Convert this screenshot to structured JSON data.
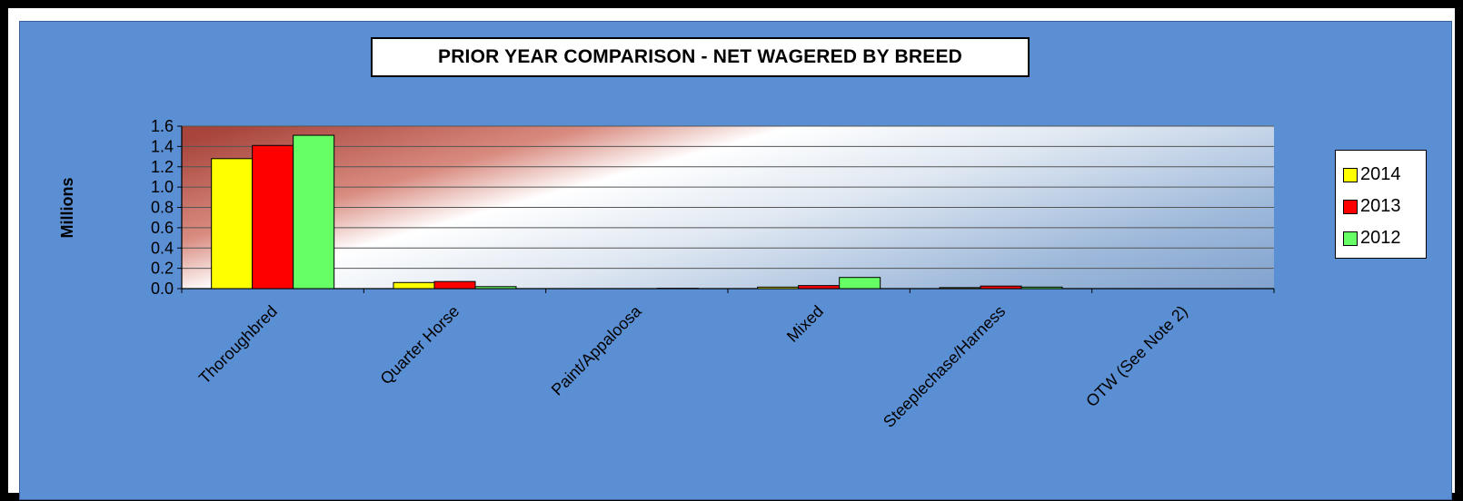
{
  "chart_data": {
    "type": "bar",
    "title": "PRIOR YEAR COMPARISON - NET WAGERED BY BREED",
    "ylabel": "Millions",
    "xlabel": "",
    "ylim": [
      0,
      1.6
    ],
    "yticks": [
      "0.0",
      "0.2",
      "0.4",
      "0.6",
      "0.8",
      "1.0",
      "1.2",
      "1.4",
      "1.6"
    ],
    "grid": true,
    "legend_position": "right",
    "categories": [
      "Thoroughbred",
      "Quarter Horse",
      "Paint/Appaloosa",
      "Mixed",
      "Steeplechase/Harness",
      "OTW (See Note 2)"
    ],
    "series": [
      {
        "name": "2014",
        "color": "#ffff00",
        "values": [
          1.28,
          0.06,
          0.0,
          0.015,
          0.01,
          0.0
        ]
      },
      {
        "name": "2013",
        "color": "#ff0000",
        "values": [
          1.41,
          0.07,
          0.0,
          0.03,
          0.025,
          0.0
        ]
      },
      {
        "name": "2012",
        "color": "#66ff66",
        "values": [
          1.51,
          0.02,
          0.003,
          0.11,
          0.015,
          0.0
        ]
      }
    ]
  }
}
